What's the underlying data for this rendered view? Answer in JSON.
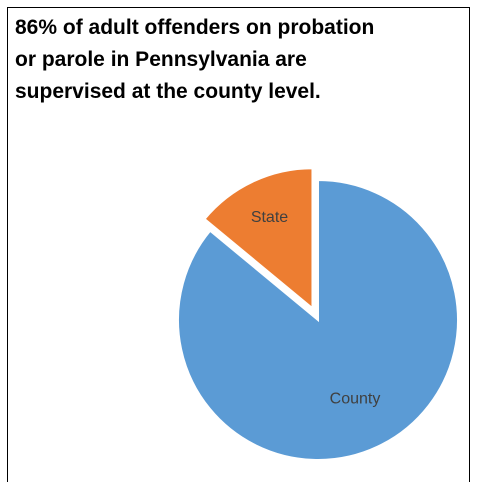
{
  "chart_data": {
    "type": "pie",
    "title": "86% of adult offenders on probation or parole in Pennsylvania are supervised at the county level.",
    "slices": [
      {
        "label": "County",
        "value": 86,
        "color": "#5b9bd5",
        "exploded": false
      },
      {
        "label": "State",
        "value": 14,
        "color": "#ed7d31",
        "exploded": true
      }
    ],
    "legend": "none",
    "label_color": "#404040"
  }
}
